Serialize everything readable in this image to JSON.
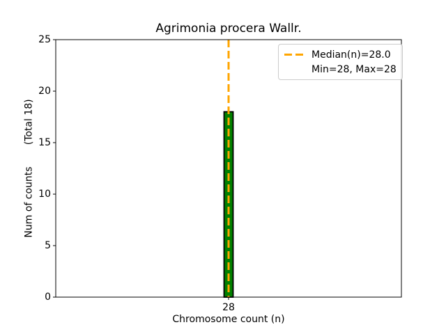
{
  "chart_data": {
    "type": "bar",
    "title": "Agrimonia procera Wallr.",
    "xlabel": "Chromosome count (n)",
    "ylabel": "Num of counts       (Total 18)",
    "categories": [
      "28"
    ],
    "values": [
      18
    ],
    "total_counts": 18,
    "ylim": [
      0,
      25
    ],
    "yticks": [
      0,
      5,
      10,
      15,
      20,
      25
    ],
    "median": 28.0,
    "min": 28,
    "max": 28,
    "legend": [
      "Median(n)=28.0",
      "Min=28, Max=28"
    ],
    "legend_position": "upper right",
    "grid": false,
    "colors": {
      "bar_fill": "#008000",
      "bar_edge": "#000000",
      "median_line": "#FFA500",
      "axes": "#000000",
      "background": "#FFFFFF"
    }
  }
}
